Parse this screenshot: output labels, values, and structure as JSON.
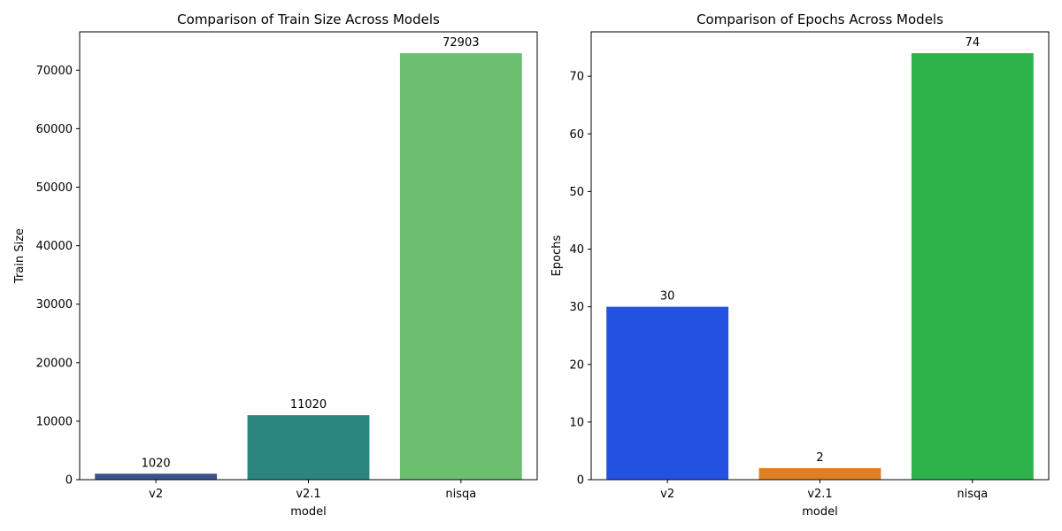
{
  "chart_data": [
    {
      "type": "bar",
      "title": "Comparison of Train Size Across Models",
      "xlabel": "model",
      "ylabel": "Train Size",
      "categories": [
        "v2",
        "v2.1",
        "nisqa"
      ],
      "values": [
        1020,
        11020,
        72903
      ],
      "data_labels": [
        "1020",
        "11020",
        "72903"
      ],
      "colors": [
        "#3b528b",
        "#2c8680",
        "#6bbf6e"
      ],
      "ylim": [
        0,
        76548
      ],
      "yticks": [
        0,
        10000,
        20000,
        30000,
        40000,
        50000,
        60000,
        70000
      ],
      "grid": false,
      "legend": "none"
    },
    {
      "type": "bar",
      "title": "Comparison of Epochs Across Models",
      "xlabel": "model",
      "ylabel": "Epochs",
      "categories": [
        "v2",
        "v2.1",
        "nisqa"
      ],
      "values": [
        30,
        2,
        74
      ],
      "data_labels": [
        "30",
        "2",
        "74"
      ],
      "colors": [
        "#2351e0",
        "#e07f22",
        "#2eb34a"
      ],
      "ylim": [
        0,
        77.7
      ],
      "yticks": [
        0,
        10,
        20,
        30,
        40,
        50,
        60,
        70
      ],
      "grid": false,
      "legend": "none"
    }
  ]
}
